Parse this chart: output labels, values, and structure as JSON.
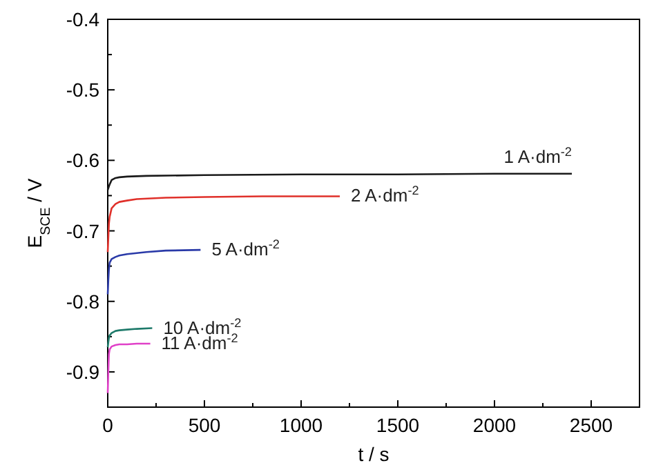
{
  "chart_data": {
    "type": "line",
    "xlabel": "t / s",
    "ylabel": "E$_{SCE}$ / V",
    "xlim": [
      0,
      2750
    ],
    "ylim": [
      -0.95,
      -0.4
    ],
    "xticks": [
      0,
      500,
      1000,
      1500,
      2000,
      2500
    ],
    "yticks": [
      -0.9,
      -0.8,
      -0.7,
      -0.6,
      -0.5,
      -0.4
    ],
    "grid": false,
    "line_style": "solid",
    "series": [
      {
        "name": "1 A·dm$^{-2}$",
        "color": "#1a1a1a",
        "x": [
          0,
          5,
          10,
          20,
          40,
          60,
          100,
          200,
          500,
          1000,
          1500,
          2000,
          2400
        ],
        "values": [
          -0.642,
          -0.638,
          -0.634,
          -0.628,
          -0.625,
          -0.624,
          -0.623,
          -0.622,
          -0.621,
          -0.62,
          -0.62,
          -0.619,
          -0.619
        ]
      },
      {
        "name": "2 A·dm$^{-2}$",
        "color": "#e0302a",
        "x": [
          0,
          3,
          6,
          10,
          20,
          40,
          60,
          100,
          150,
          300,
          500,
          800,
          1200
        ],
        "values": [
          -0.73,
          -0.71,
          -0.69,
          -0.68,
          -0.668,
          -0.662,
          -0.659,
          -0.657,
          -0.655,
          -0.653,
          -0.652,
          -0.651,
          -0.651
        ]
      },
      {
        "name": "5 A·dm$^{-2}$",
        "color": "#2a3aa8",
        "x": [
          0,
          3,
          6,
          10,
          20,
          40,
          60,
          100,
          200,
          300,
          480
        ],
        "values": [
          -0.79,
          -0.77,
          -0.755,
          -0.745,
          -0.74,
          -0.737,
          -0.735,
          -0.733,
          -0.73,
          -0.728,
          -0.727
        ]
      },
      {
        "name": "10 A·dm$^{-2}$",
        "color": "#1e7a6a",
        "x": [
          0,
          3,
          6,
          10,
          20,
          40,
          60,
          100,
          150,
          230
        ],
        "values": [
          -0.865,
          -0.858,
          -0.852,
          -0.848,
          -0.845,
          -0.842,
          -0.841,
          -0.84,
          -0.839,
          -0.838
        ]
      },
      {
        "name": "11 A·dm$^{-2}$",
        "color": "#e040c8",
        "x": [
          0,
          3,
          6,
          10,
          20,
          40,
          60,
          100,
          150,
          220
        ],
        "values": [
          -0.93,
          -0.9,
          -0.875,
          -0.868,
          -0.864,
          -0.862,
          -0.861,
          -0.861,
          -0.86,
          -0.86
        ]
      }
    ]
  }
}
